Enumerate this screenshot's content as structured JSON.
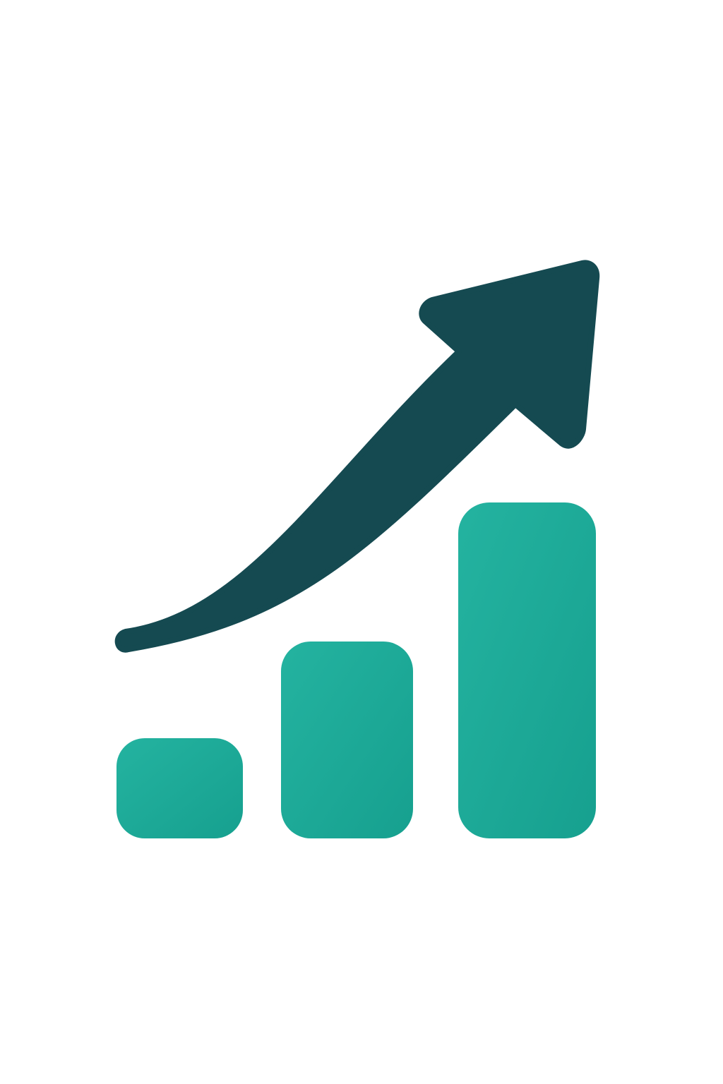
{
  "icon": {
    "name": "growth-chart-icon",
    "arrow_icon": "trend-up-arrow-icon",
    "bars": [
      {
        "name": "small-bar",
        "relative_value": 1
      },
      {
        "name": "medium-bar",
        "relative_value": 2
      },
      {
        "name": "tall-bar",
        "relative_value": 3.4
      }
    ]
  },
  "colors": {
    "background": "#ffffff",
    "arrow": "#154a51",
    "bar_light": "#24b3a0",
    "bar_dark": "#16a08f"
  }
}
